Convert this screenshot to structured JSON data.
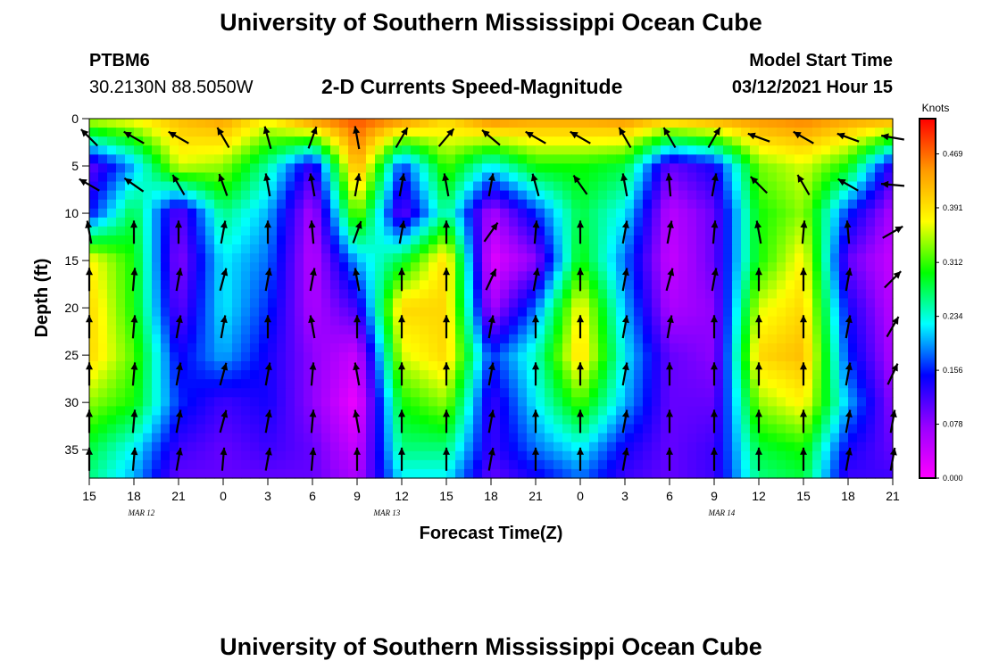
{
  "header": {
    "title_top": "University of Southern Mississippi Ocean Cube",
    "title_bottom": "University of Southern Mississippi Ocean Cube",
    "station_id": "PTBM6",
    "station_coords": "30.2130N 88.5050W",
    "subtitle": "2-D Currents Speed-Magnitude",
    "model_start_label": "Model Start Time",
    "model_start_value": "03/12/2021 Hour 15"
  },
  "chart_data": {
    "type": "heatmap",
    "title": "2-D Currents Speed-Magnitude",
    "xlabel": "Forecast Time(Z)",
    "ylabel": "Depth (ft)",
    "x_tick_labels": [
      "15",
      "18",
      "21",
      "0",
      "3",
      "6",
      "9",
      "12",
      "15",
      "18",
      "21",
      "0",
      "3",
      "6",
      "9",
      "12",
      "15",
      "18",
      "21"
    ],
    "x_range_hours": [
      0,
      54
    ],
    "date_labels": [
      {
        "text": "MAR 12",
        "hour": 3.5
      },
      {
        "text": "MAR 13",
        "hour": 20
      },
      {
        "text": "MAR 14",
        "hour": 42.5
      }
    ],
    "y_ticks": [
      0,
      5,
      10,
      15,
      20,
      25,
      30,
      35
    ],
    "ylim": [
      0,
      38
    ],
    "y_inverted": true,
    "colorbar": {
      "unit_label": "Knots",
      "tick_labels": [
        "0.000",
        "0.078",
        "0.156",
        "0.234",
        "0.312",
        "0.391",
        "0.469"
      ],
      "range": [
        0,
        0.52
      ],
      "colors": [
        "#ff00ff",
        "#9900ff",
        "#0000ff",
        "#00ffff",
        "#00ff00",
        "#ffff00",
        "#ff9900",
        "#ff0000"
      ]
    },
    "speed_grid_knots": {
      "hours": [
        0,
        3,
        6,
        9,
        12,
        15,
        18,
        21,
        24,
        27,
        30,
        33,
        36,
        39,
        42,
        45,
        48,
        51,
        54
      ],
      "depths_ft": [
        0,
        5,
        10,
        15,
        20,
        25,
        30,
        35,
        38
      ],
      "values": [
        [
          0.36,
          0.38,
          0.42,
          0.44,
          0.38,
          0.46,
          0.48,
          0.46,
          0.4,
          0.46,
          0.44,
          0.44,
          0.45,
          0.42,
          0.44,
          0.45,
          0.46,
          0.44,
          0.44
        ],
        [
          0.1,
          0.2,
          0.36,
          0.34,
          0.25,
          0.12,
          0.44,
          0.16,
          0.32,
          0.22,
          0.3,
          0.3,
          0.28,
          0.1,
          0.14,
          0.33,
          0.36,
          0.3,
          0.12
        ],
        [
          0.15,
          0.28,
          0.1,
          0.26,
          0.2,
          0.06,
          0.34,
          0.1,
          0.26,
          0.06,
          0.16,
          0.28,
          0.22,
          0.05,
          0.1,
          0.3,
          0.34,
          0.16,
          0.06
        ],
        [
          0.38,
          0.3,
          0.08,
          0.22,
          0.18,
          0.05,
          0.2,
          0.28,
          0.4,
          0.02,
          0.08,
          0.3,
          0.18,
          0.04,
          0.1,
          0.3,
          0.38,
          0.1,
          0.04
        ],
        [
          0.4,
          0.3,
          0.1,
          0.22,
          0.16,
          0.06,
          0.12,
          0.4,
          0.4,
          0.06,
          0.18,
          0.38,
          0.2,
          0.06,
          0.08,
          0.36,
          0.4,
          0.14,
          0.05
        ],
        [
          0.4,
          0.32,
          0.14,
          0.2,
          0.14,
          0.08,
          0.04,
          0.36,
          0.4,
          0.16,
          0.24,
          0.4,
          0.22,
          0.1,
          0.08,
          0.4,
          0.42,
          0.16,
          0.06
        ],
        [
          0.34,
          0.3,
          0.16,
          0.12,
          0.14,
          0.08,
          0.01,
          0.3,
          0.34,
          0.12,
          0.22,
          0.32,
          0.2,
          0.1,
          0.1,
          0.34,
          0.38,
          0.2,
          0.08
        ],
        [
          0.28,
          0.22,
          0.12,
          0.1,
          0.12,
          0.1,
          0.04,
          0.26,
          0.26,
          0.12,
          0.18,
          0.22,
          0.14,
          0.1,
          0.12,
          0.28,
          0.3,
          0.14,
          0.1
        ],
        [
          0.26,
          0.2,
          0.1,
          0.1,
          0.1,
          0.1,
          0.06,
          0.22,
          0.22,
          0.1,
          0.14,
          0.18,
          0.12,
          0.1,
          0.12,
          0.26,
          0.28,
          0.12,
          0.12
        ]
      ]
    },
    "current_vectors": {
      "hours": [
        0,
        3,
        6,
        9,
        12,
        15,
        18,
        21,
        24,
        27,
        30,
        33,
        36,
        39,
        42,
        45,
        48,
        51,
        54
      ],
      "depths_ft": [
        2,
        7,
        12,
        17,
        22,
        27,
        32,
        36
      ],
      "angle_deg": [
        [
          135,
          150,
          150,
          120,
          105,
          70,
          100,
          60,
          50,
          140,
          150,
          150,
          120,
          120,
          60,
          160,
          150,
          160,
          170
        ],
        [
          150,
          145,
          120,
          110,
          100,
          100,
          80,
          80,
          100,
          80,
          105,
          125,
          100,
          95,
          80,
          135,
          120,
          150,
          175
        ],
        [
          100,
          90,
          90,
          80,
          90,
          95,
          70,
          80,
          90,
          55,
          85,
          90,
          80,
          80,
          85,
          100,
          85,
          95,
          30
        ],
        [
          90,
          85,
          80,
          75,
          80,
          80,
          100,
          90,
          90,
          65,
          80,
          90,
          80,
          75,
          80,
          90,
          90,
          80,
          45
        ],
        [
          90,
          85,
          80,
          80,
          90,
          100,
          90,
          90,
          90,
          80,
          90,
          90,
          80,
          80,
          90,
          90,
          90,
          80,
          60
        ],
        [
          90,
          85,
          80,
          75,
          80,
          85,
          100,
          90,
          90,
          80,
          90,
          90,
          80,
          90,
          90,
          90,
          90,
          80,
          65
        ],
        [
          90,
          85,
          80,
          75,
          80,
          85,
          100,
          90,
          90,
          80,
          90,
          90,
          80,
          90,
          90,
          90,
          90,
          80,
          80
        ],
        [
          90,
          85,
          80,
          85,
          80,
          85,
          90,
          90,
          90,
          80,
          90,
          90,
          80,
          90,
          90,
          90,
          90,
          80,
          80
        ]
      ]
    }
  }
}
